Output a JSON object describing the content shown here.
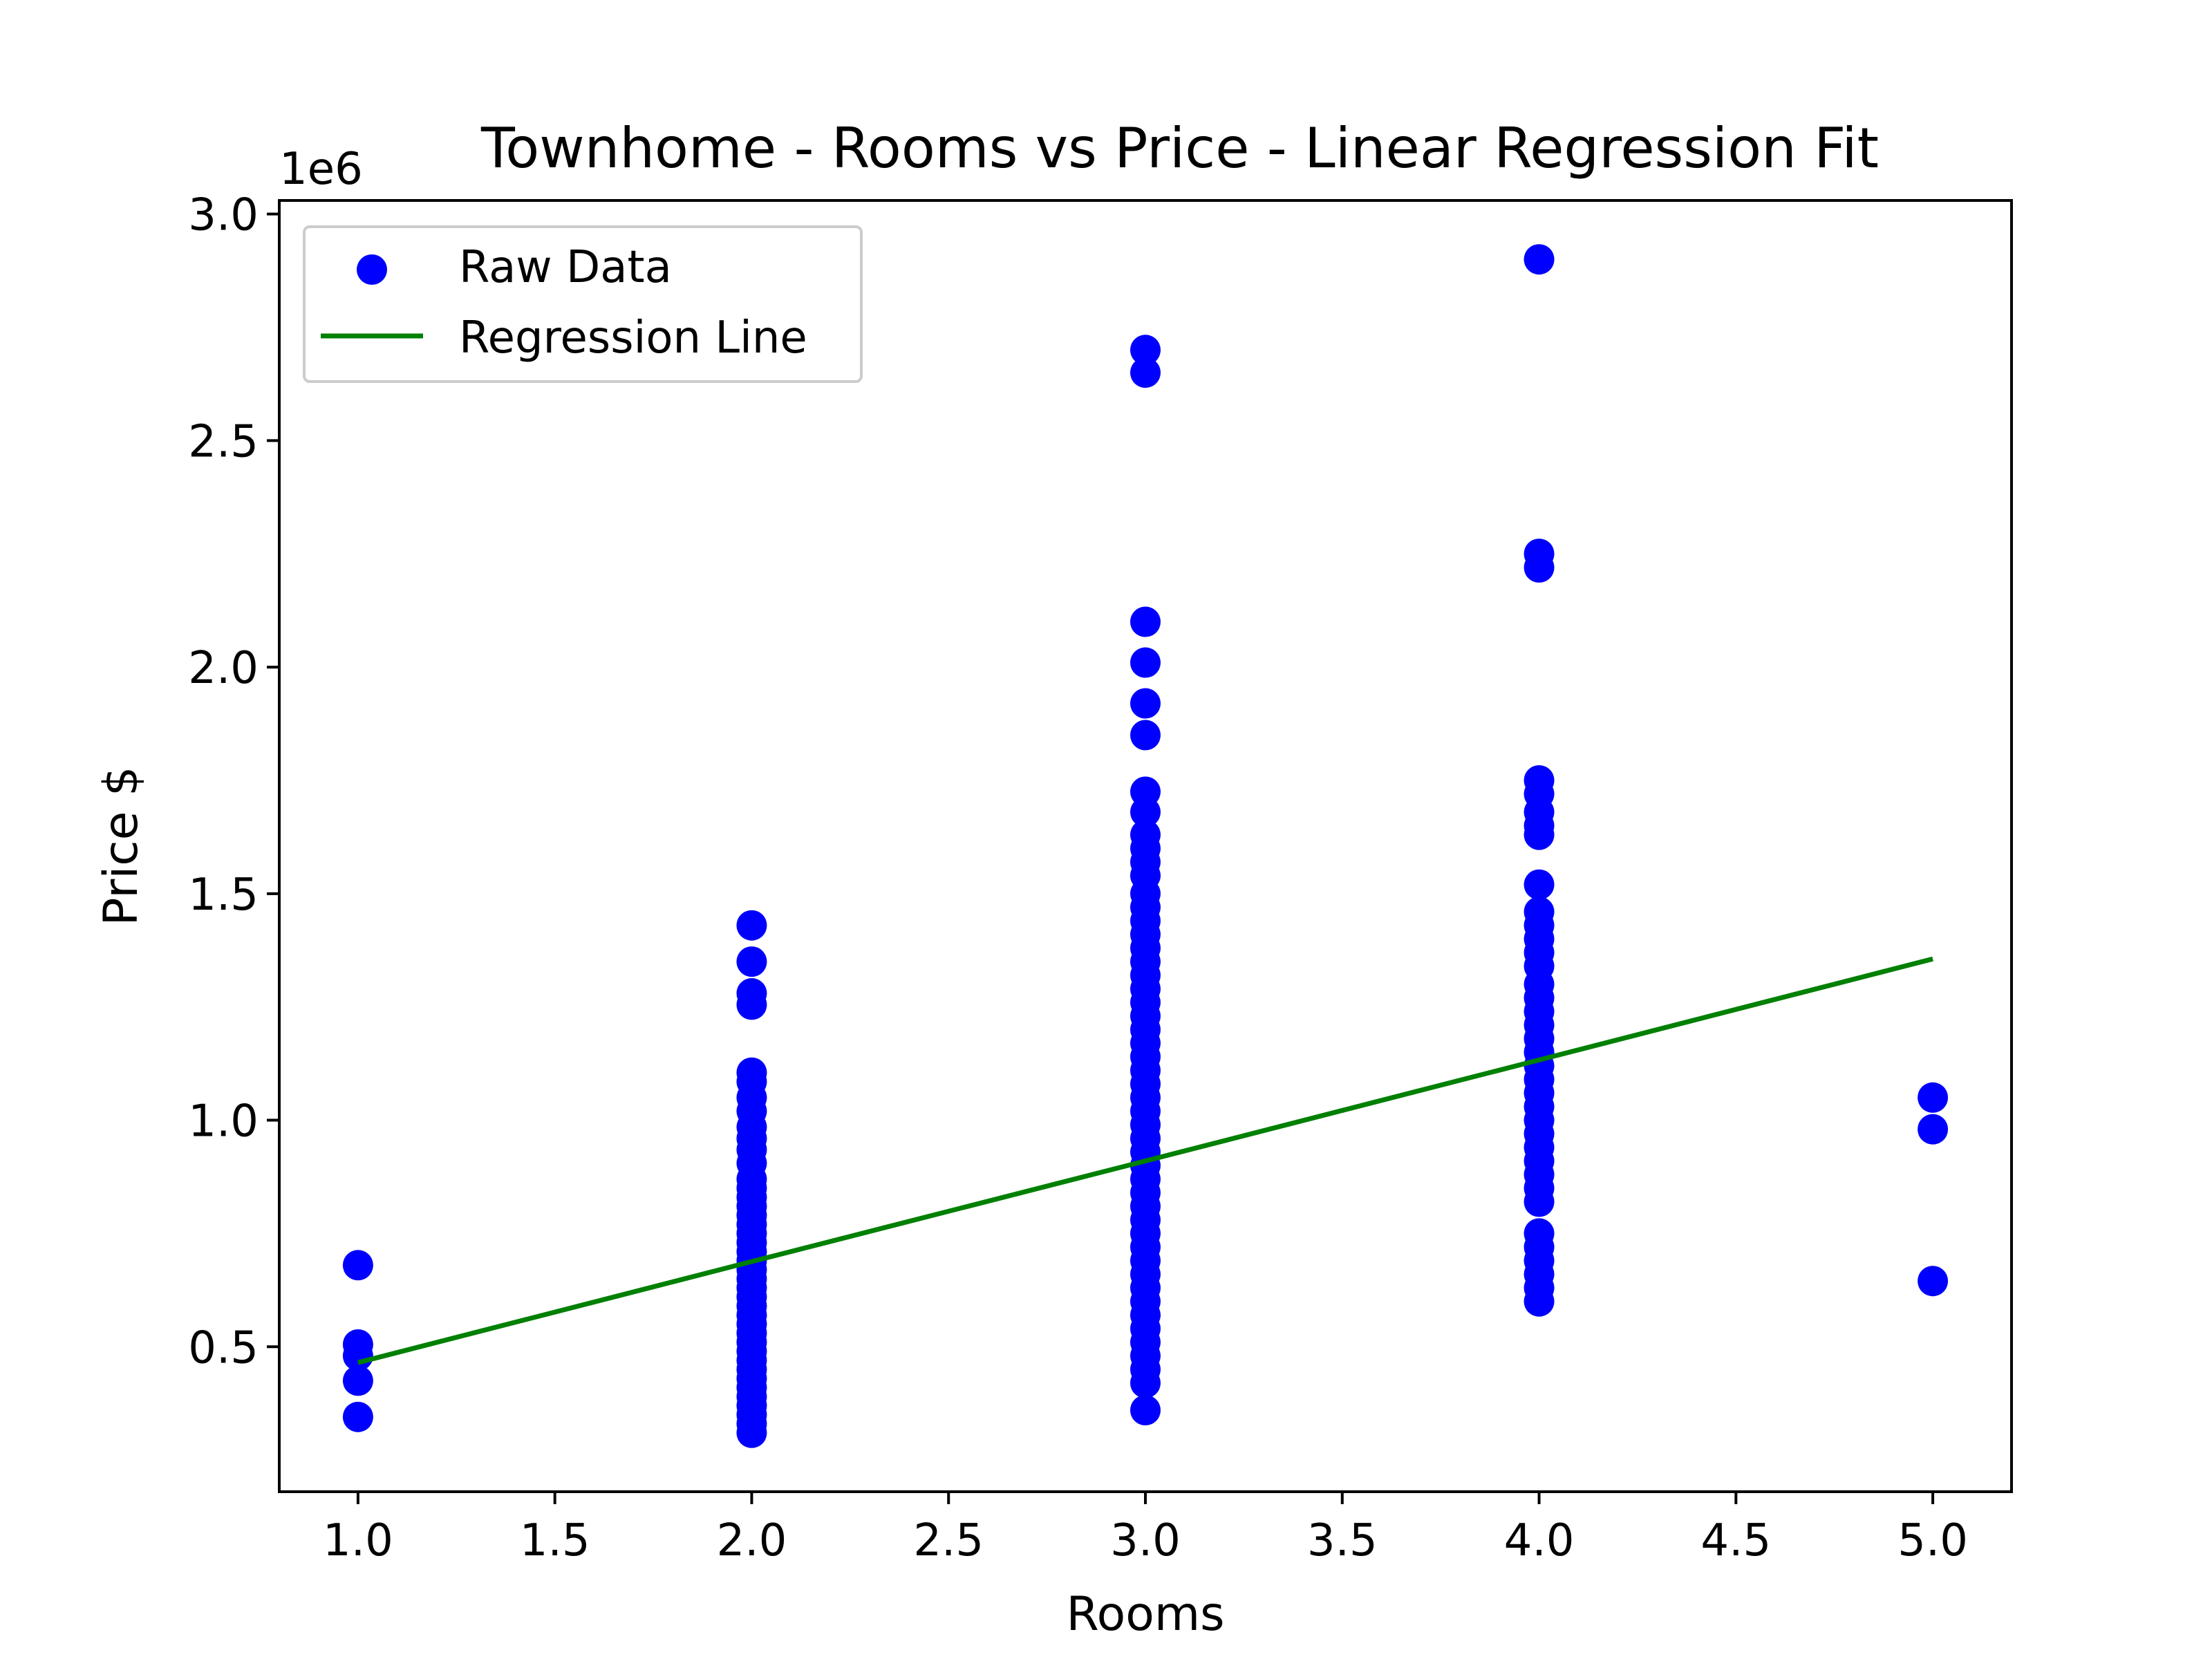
{
  "chart_data": {
    "type": "scatter",
    "title": "Townhome - Rooms vs Price - Linear Regression Fit",
    "xlabel": "Rooms",
    "ylabel": "Price $",
    "y_offset_label": "1e6",
    "xlim": [
      0.8,
      5.2
    ],
    "ylim": [
      0.18,
      3.03
    ],
    "y_scale_factor": 1000000,
    "xticks": [
      1.0,
      1.5,
      2.0,
      2.5,
      3.0,
      3.5,
      4.0,
      4.5,
      5.0
    ],
    "xtick_labels": [
      "1.0",
      "1.5",
      "2.0",
      "2.5",
      "3.0",
      "3.5",
      "4.0",
      "4.5",
      "5.0"
    ],
    "yticks": [
      0.5,
      1.0,
      1.5,
      2.0,
      2.5,
      3.0
    ],
    "ytick_labels": [
      "0.5",
      "1.0",
      "1.5",
      "2.0",
      "2.5",
      "3.0"
    ],
    "grid": false,
    "legend_position": "top-left",
    "legend": [
      {
        "label": "Raw Data",
        "kind": "marker",
        "color": "#0000ff"
      },
      {
        "label": "Regression Line",
        "kind": "line",
        "color": "#008000"
      }
    ],
    "series": [
      {
        "name": "Raw Data",
        "kind": "scatter",
        "color": "#0000ff",
        "points": [
          [
            1,
            0.68
          ],
          [
            1,
            0.505
          ],
          [
            1,
            0.48
          ],
          [
            1,
            0.425
          ],
          [
            1,
            0.345
          ],
          [
            2,
            1.43
          ],
          [
            2,
            1.35
          ],
          [
            2,
            1.28
          ],
          [
            2,
            1.255
          ],
          [
            2,
            1.105
          ],
          [
            2,
            1.085
          ],
          [
            2,
            1.05
          ],
          [
            2,
            1.02
          ],
          [
            2,
            0.985
          ],
          [
            2,
            0.96
          ],
          [
            2,
            0.935
          ],
          [
            2,
            0.905
          ],
          [
            2,
            0.87
          ],
          [
            2,
            0.85
          ],
          [
            2,
            0.83
          ],
          [
            2,
            0.81
          ],
          [
            2,
            0.79
          ],
          [
            2,
            0.77
          ],
          [
            2,
            0.75
          ],
          [
            2,
            0.73
          ],
          [
            2,
            0.71
          ],
          [
            2,
            0.69
          ],
          [
            2,
            0.67
          ],
          [
            2,
            0.65
          ],
          [
            2,
            0.63
          ],
          [
            2,
            0.61
          ],
          [
            2,
            0.59
          ],
          [
            2,
            0.57
          ],
          [
            2,
            0.55
          ],
          [
            2,
            0.53
          ],
          [
            2,
            0.51
          ],
          [
            2,
            0.49
          ],
          [
            2,
            0.47
          ],
          [
            2,
            0.45
          ],
          [
            2,
            0.43
          ],
          [
            2,
            0.41
          ],
          [
            2,
            0.39
          ],
          [
            2,
            0.37
          ],
          [
            2,
            0.35
          ],
          [
            2,
            0.33
          ],
          [
            2,
            0.31
          ],
          [
            3,
            2.7
          ],
          [
            3,
            2.65
          ],
          [
            3,
            2.1
          ],
          [
            3,
            2.01
          ],
          [
            3,
            1.92
          ],
          [
            3,
            1.85
          ],
          [
            3,
            1.725
          ],
          [
            3,
            1.68
          ],
          [
            3,
            1.63
          ],
          [
            3,
            1.6
          ],
          [
            3,
            1.57
          ],
          [
            3,
            1.54
          ],
          [
            3,
            1.5
          ],
          [
            3,
            1.47
          ],
          [
            3,
            1.44
          ],
          [
            3,
            1.41
          ],
          [
            3,
            1.38
          ],
          [
            3,
            1.35
          ],
          [
            3,
            1.32
          ],
          [
            3,
            1.29
          ],
          [
            3,
            1.26
          ],
          [
            3,
            1.23
          ],
          [
            3,
            1.2
          ],
          [
            3,
            1.17
          ],
          [
            3,
            1.14
          ],
          [
            3,
            1.11
          ],
          [
            3,
            1.08
          ],
          [
            3,
            1.05
          ],
          [
            3,
            1.02
          ],
          [
            3,
            0.99
          ],
          [
            3,
            0.96
          ],
          [
            3,
            0.93
          ],
          [
            3,
            0.9
          ],
          [
            3,
            0.87
          ],
          [
            3,
            0.84
          ],
          [
            3,
            0.81
          ],
          [
            3,
            0.78
          ],
          [
            3,
            0.75
          ],
          [
            3,
            0.72
          ],
          [
            3,
            0.69
          ],
          [
            3,
            0.66
          ],
          [
            3,
            0.63
          ],
          [
            3,
            0.6
          ],
          [
            3,
            0.57
          ],
          [
            3,
            0.54
          ],
          [
            3,
            0.51
          ],
          [
            3,
            0.48
          ],
          [
            3,
            0.45
          ],
          [
            3,
            0.42
          ],
          [
            3,
            0.36
          ],
          [
            4,
            2.9
          ],
          [
            4,
            2.25
          ],
          [
            4,
            2.22
          ],
          [
            4,
            1.75
          ],
          [
            4,
            1.72
          ],
          [
            4,
            1.68
          ],
          [
            4,
            1.65
          ],
          [
            4,
            1.63
          ],
          [
            4,
            1.52
          ],
          [
            4,
            1.46
          ],
          [
            4,
            1.43
          ],
          [
            4,
            1.4
          ],
          [
            4,
            1.37
          ],
          [
            4,
            1.34
          ],
          [
            4,
            1.3
          ],
          [
            4,
            1.27
          ],
          [
            4,
            1.24
          ],
          [
            4,
            1.21
          ],
          [
            4,
            1.18
          ],
          [
            4,
            1.15
          ],
          [
            4,
            1.12
          ],
          [
            4,
            1.09
          ],
          [
            4,
            1.06
          ],
          [
            4,
            1.03
          ],
          [
            4,
            1.0
          ],
          [
            4,
            0.97
          ],
          [
            4,
            0.94
          ],
          [
            4,
            0.91
          ],
          [
            4,
            0.88
          ],
          [
            4,
            0.85
          ],
          [
            4,
            0.82
          ],
          [
            4,
            0.75
          ],
          [
            4,
            0.72
          ],
          [
            4,
            0.69
          ],
          [
            4,
            0.66
          ],
          [
            4,
            0.63
          ],
          [
            4,
            0.6
          ],
          [
            5,
            1.05
          ],
          [
            5,
            0.98
          ],
          [
            5,
            0.645
          ]
        ]
      },
      {
        "name": "Regression Line",
        "kind": "line",
        "color": "#008000",
        "points": [
          [
            1,
            0.465
          ],
          [
            2,
            0.688
          ],
          [
            3,
            0.91
          ],
          [
            4,
            1.133
          ],
          [
            5,
            1.356
          ]
        ]
      }
    ]
  }
}
